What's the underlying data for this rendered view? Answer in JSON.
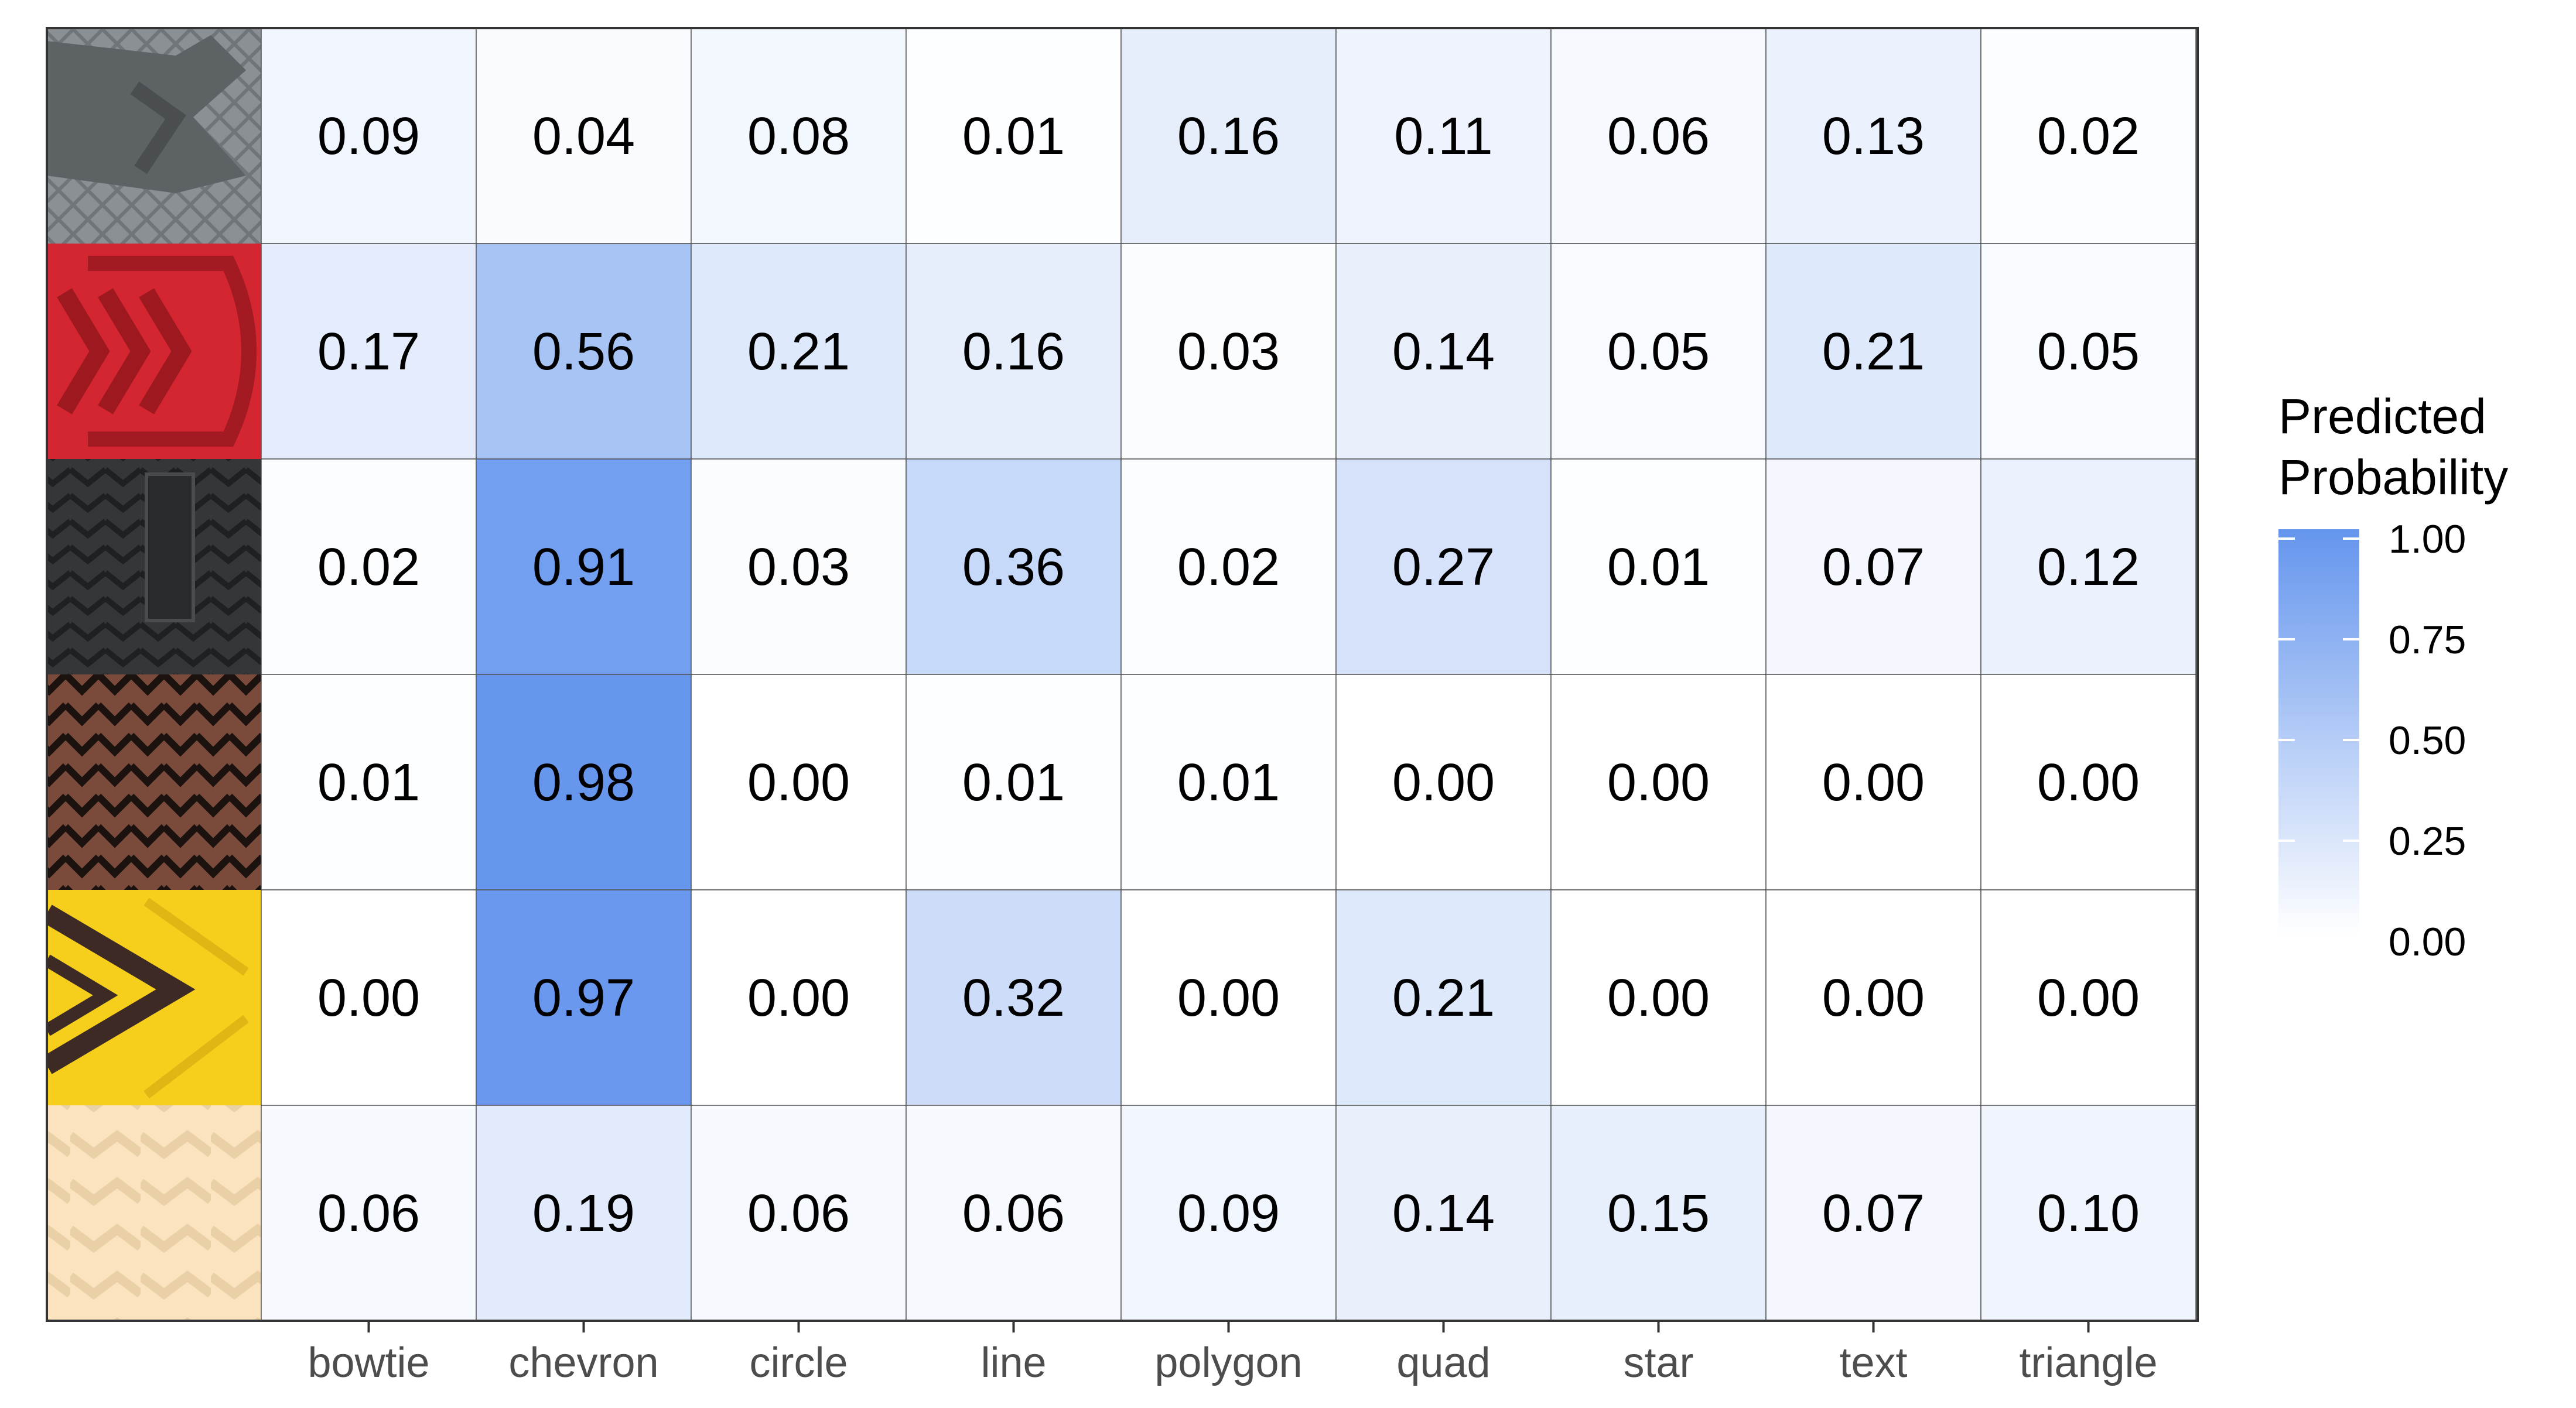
{
  "chart_data": {
    "type": "heatmap",
    "title": "",
    "xlabel": "",
    "ylabel": "",
    "categories": [
      "bowtie",
      "chevron",
      "circle",
      "line",
      "polygon",
      "quad",
      "star",
      "text",
      "triangle"
    ],
    "rows": [
      {
        "image": "gray rubber sole with raised chevron ridge on diamond-textured background",
        "values": [
          0.09,
          0.04,
          0.08,
          0.01,
          0.16,
          0.11,
          0.06,
          0.13,
          0.02
        ]
      },
      {
        "image": "red sole with nested chevron stripes inside a rounded outline",
        "values": [
          0.17,
          0.56,
          0.21,
          0.16,
          0.03,
          0.14,
          0.05,
          0.21,
          0.05
        ]
      },
      {
        "image": "dark gray sole with herringbone chevron rows and a rectangular logo pad",
        "values": [
          0.02,
          0.91,
          0.03,
          0.36,
          0.02,
          0.27,
          0.01,
          0.07,
          0.12
        ]
      },
      {
        "image": "brown sole with dense black zigzag chevron rows",
        "values": [
          0.01,
          0.98,
          0.0,
          0.01,
          0.01,
          0.0,
          0.0,
          0.0,
          0.0
        ]
      },
      {
        "image": "yellow sole with dark brown chevron bands",
        "values": [
          0.0,
          0.97,
          0.0,
          0.32,
          0.0,
          0.21,
          0.0,
          0.0,
          0.0
        ]
      },
      {
        "image": "cream sole with textured zigzag ridges",
        "values": [
          0.06,
          0.19,
          0.06,
          0.06,
          0.09,
          0.14,
          0.15,
          0.07,
          0.1
        ]
      }
    ],
    "color_scale": {
      "low": "#ffffff",
      "high": "#6495ed",
      "range": [
        0,
        1
      ]
    },
    "legend": {
      "title_lines": [
        "Predicted",
        "Probability"
      ],
      "ticks": [
        1.0,
        0.75,
        0.5,
        0.25,
        0.0
      ],
      "tick_labels": [
        "1.00",
        "0.75",
        "0.50",
        "0.25",
        "0.00"
      ],
      "placement": "right"
    },
    "grid": true
  }
}
